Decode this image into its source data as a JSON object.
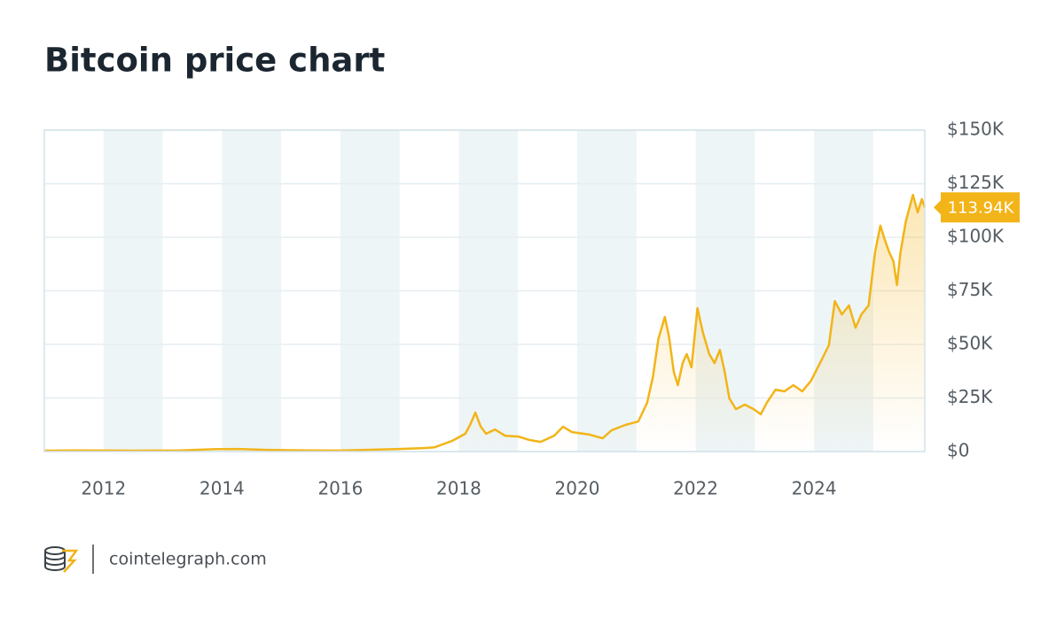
{
  "chart_data": {
    "type": "line",
    "title": "Bitcoin price chart",
    "x": [
      2011.0,
      2011.5,
      2012.5,
      2013.3,
      2013.9,
      2014.29,
      2014.74,
      2015.5,
      2016.0,
      2016.99,
      2017.4,
      2017.59,
      2017.89,
      2018.11,
      2018.19,
      2018.28,
      2018.37,
      2018.46,
      2018.61,
      2018.78,
      2019.01,
      2019.19,
      2019.38,
      2019.61,
      2019.76,
      2019.91,
      2020.21,
      2020.43,
      2020.58,
      2020.81,
      2021.03,
      2021.18,
      2021.28,
      2021.37,
      2021.48,
      2021.55,
      2021.63,
      2021.7,
      2021.78,
      2021.85,
      2021.93,
      2022.03,
      2022.12,
      2022.23,
      2022.32,
      2022.41,
      2022.49,
      2022.57,
      2022.68,
      2022.83,
      2022.98,
      2023.1,
      2023.2,
      2023.35,
      2023.5,
      2023.65,
      2023.8,
      2023.95,
      2024.1,
      2024.25,
      2024.35,
      2024.47,
      2024.59,
      2024.7,
      2024.8,
      2024.92,
      2025.03,
      2025.12,
      2025.19,
      2025.27,
      2025.34,
      2025.4,
      2025.46,
      2025.55,
      2025.67,
      2025.75,
      2025.82,
      2025.87
    ],
    "values": [
      400,
      500,
      400,
      500,
      1100,
      1200,
      800,
      500,
      450,
      1200,
      1600,
      2000,
      5000,
      8300,
      12400,
      18200,
      11600,
      8300,
      10300,
      7400,
      7000,
      5400,
      4500,
      7400,
      11600,
      9100,
      7900,
      6200,
      9900,
      12400,
      14000,
      22700,
      35100,
      52500,
      62800,
      53700,
      37200,
      31000,
      41300,
      45500,
      39300,
      66900,
      55800,
      45500,
      41300,
      47500,
      37200,
      24800,
      19800,
      21900,
      19800,
      17400,
      22700,
      28900,
      28100,
      31000,
      28100,
      33100,
      41300,
      49600,
      70200,
      64000,
      68200,
      57800,
      64000,
      68200,
      93000,
      105400,
      99200,
      93000,
      88800,
      77700,
      93000,
      107400,
      119800,
      111600,
      117800,
      113940
    ],
    "color": "#f2b418",
    "xlim": [
      2011.0,
      2025.87
    ],
    "xticks": [
      2012,
      2014,
      2016,
      2018,
      2020,
      2022,
      2024
    ],
    "ylim": [
      0,
      150000
    ],
    "yticks": [
      {
        "value": 0,
        "label": "$0"
      },
      {
        "value": 25000,
        "label": "$25K"
      },
      {
        "value": 50000,
        "label": "$50K"
      },
      {
        "value": 75000,
        "label": "$75K"
      },
      {
        "value": 100000,
        "label": "$100K"
      },
      {
        "value": 125000,
        "label": "$125K"
      },
      {
        "value": 150000,
        "label": "$150K"
      }
    ],
    "grid": true,
    "price_tag": {
      "value": 113940,
      "label": "113.94K"
    },
    "source": "cointelegraph.com"
  }
}
